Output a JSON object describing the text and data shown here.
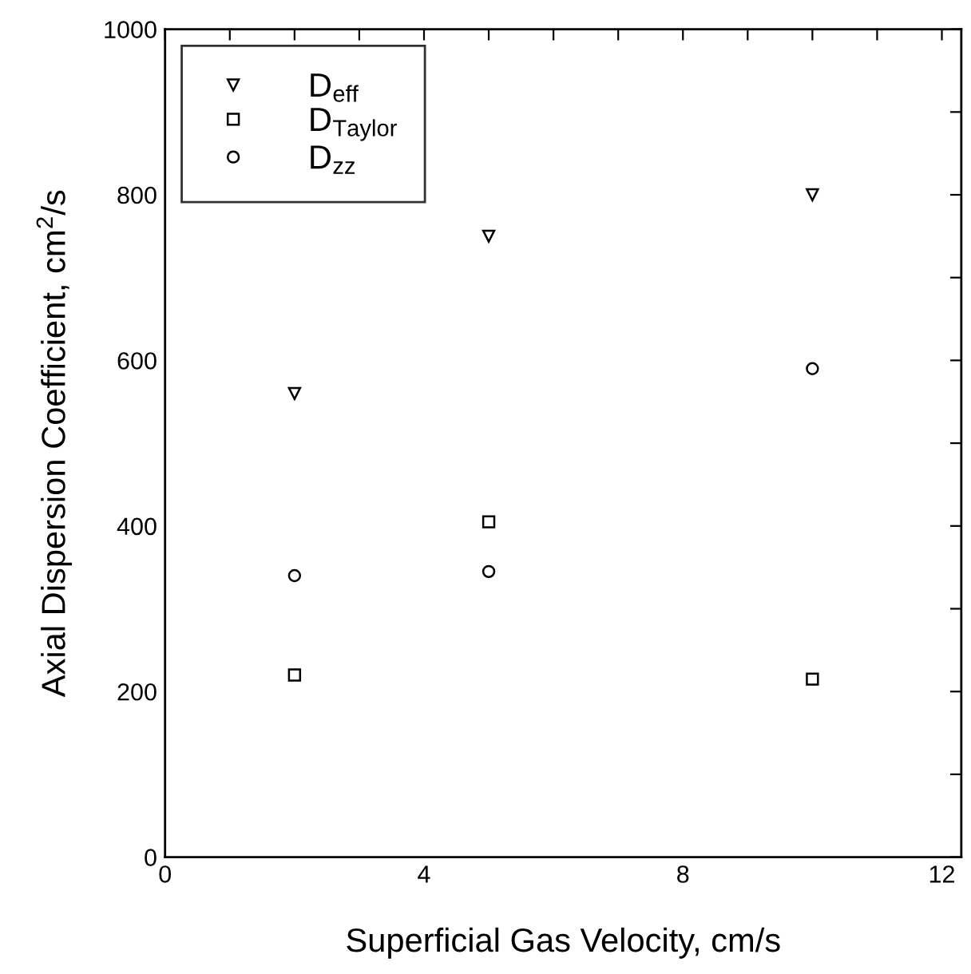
{
  "chart_data": {
    "type": "scatter",
    "xlabel": "Superficial Gas Velocity, cm/s",
    "ylabel": "Axial Dispersion Coefficient, cm$^{2}$/s",
    "x": [
      2,
      5,
      10
    ],
    "series": [
      {
        "name": "D$_{eff}$",
        "color": "#000000",
        "marker": "triangle",
        "values": [
          560,
          750,
          800
        ]
      },
      {
        "name": "D$_{Taylor}$",
        "color": "#000000",
        "marker": "square",
        "values": [
          220,
          405,
          215
        ]
      },
      {
        "name": "D$_{zz}$",
        "color": "#000000",
        "marker": "circle",
        "values": [
          340,
          345,
          590
        ]
      }
    ],
    "xlim": [
      0,
      12.3
    ],
    "xticks": [
      0,
      {
        "value": 1,
        "label": null
      },
      {
        "value": 2,
        "label": null
      },
      {
        "value": 3,
        "label": null
      },
      4,
      {
        "value": 5,
        "label": null
      },
      {
        "value": 6,
        "label": null
      },
      {
        "value": 7,
        "label": null
      },
      8,
      {
        "value": 9,
        "label": null
      },
      {
        "value": 10,
        "label": null
      },
      {
        "value": 11,
        "label": null
      },
      12
    ],
    "ylim": [
      0,
      1000
    ],
    "yticks": [
      0,
      {
        "value": 100,
        "label": null
      },
      200,
      {
        "value": 300,
        "label": null
      },
      400,
      {
        "value": 500,
        "label": null
      },
      600,
      {
        "value": 700,
        "label": null
      },
      800,
      {
        "value": 900,
        "label": null
      },
      1000
    ],
    "grid": false,
    "legend": "top left"
  }
}
